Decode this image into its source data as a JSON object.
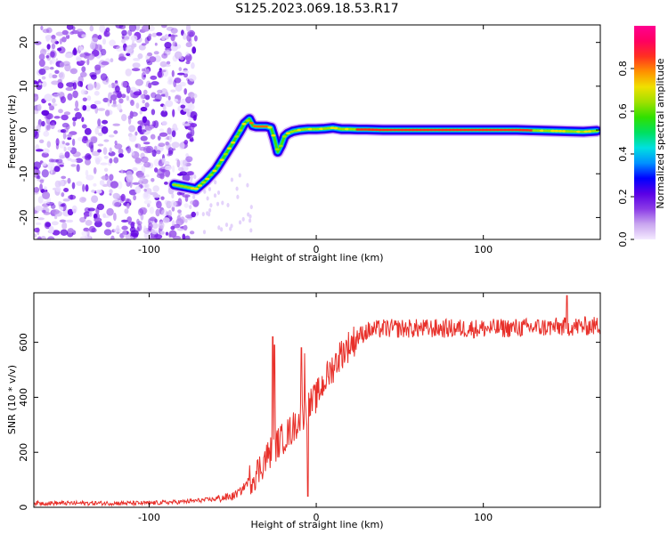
{
  "title": "S125.2023.069.18.53.R17",
  "chart_data": [
    {
      "type": "heatmap",
      "name": "spectrogram",
      "xlabel": "Height of straight line (km)",
      "ylabel": "Frequency (Hz)",
      "xlim": [
        -169,
        170
      ],
      "ylim": [
        -25,
        24
      ],
      "xticks": [
        -100,
        0,
        100
      ],
      "yticks": [
        -20,
        -10,
        0,
        10,
        20
      ],
      "colorbar": {
        "label": "Normalized spectral amplitude",
        "range": [
          0,
          1
        ],
        "ticks": [
          "0.0",
          "0.2",
          "0.4",
          "0.6",
          "0.8"
        ],
        "tick_values": [
          0.0,
          0.2,
          0.4,
          0.6,
          0.8
        ],
        "colors": [
          "#f4eaff",
          "#c9a6ef",
          "#8b3be6",
          "#5a00e6",
          "#0000ff",
          "#0090ff",
          "#00e0e0",
          "#00e060",
          "#30e000",
          "#a0e000",
          "#f0e000",
          "#ff9000",
          "#ff3020",
          "#ff0060",
          "#ff0090"
        ]
      },
      "noise_region_x": [
        -169,
        -78
      ],
      "ridge": {
        "x": [
          -85,
          -78,
          -72,
          -66,
          -60,
          -55,
          -50,
          -46,
          -43,
          -40,
          -38,
          -36,
          -34,
          -30,
          -27,
          -25,
          -23,
          -21,
          -19,
          -17,
          -14,
          -10,
          -5,
          0,
          5,
          10,
          15,
          20,
          25,
          30,
          40,
          60,
          80,
          100,
          120,
          140,
          160,
          168
        ],
        "y": [
          -12.5,
          -13,
          -13.5,
          -11.5,
          -9,
          -6,
          -3,
          -0.5,
          1.5,
          2.5,
          1.0,
          0.8,
          0.8,
          0.8,
          0.5,
          -2,
          -5,
          -3.5,
          -1.5,
          -0.8,
          -0.3,
          0,
          0.2,
          0.2,
          0.3,
          0.5,
          0.2,
          0.2,
          0.1,
          0.1,
          0,
          0,
          0,
          0,
          0,
          -0.2,
          -0.4,
          -0.2
        ]
      }
    },
    {
      "type": "line",
      "name": "snr",
      "xlabel": "Height of straight line (km)",
      "ylabel": "SNR (10 * v/v)",
      "xlim": [
        -169,
        170
      ],
      "ylim": [
        0,
        780
      ],
      "xticks": [
        -100,
        0,
        100
      ],
      "yticks": [
        0,
        200,
        400,
        600
      ],
      "color": "#e8302a",
      "trend": {
        "x": [
          -169,
          -100,
          -80,
          -60,
          -50,
          -45,
          -40,
          -35,
          -30,
          -25,
          -20,
          -15,
          -10,
          -5,
          0,
          5,
          10,
          15,
          20,
          25,
          30,
          40,
          60,
          100,
          140,
          170
        ],
        "y": [
          15,
          15,
          20,
          30,
          40,
          60,
          100,
          130,
          180,
          220,
          250,
          280,
          320,
          360,
          400,
          460,
          510,
          560,
          590,
          620,
          640,
          650,
          650,
          650,
          655,
          660
        ]
      },
      "spikes": [
        {
          "x": -26,
          "y": 620
        },
        {
          "x": -25,
          "y": 590
        },
        {
          "x": -9,
          "y": 580
        },
        {
          "x": -7,
          "y": 560
        },
        {
          "x": -5,
          "y": 40
        },
        {
          "x": 150,
          "y": 770
        }
      ]
    }
  ]
}
